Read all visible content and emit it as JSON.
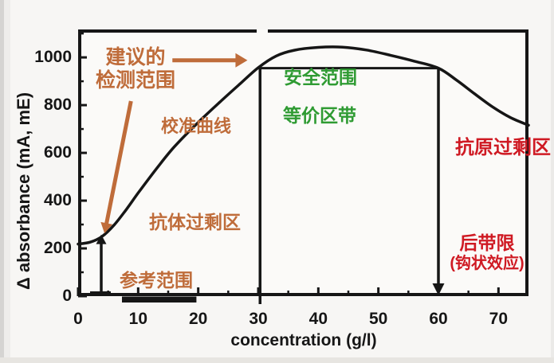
{
  "colors": {
    "orange": "#bf6c3a",
    "green": "#2f9b33",
    "red": "#cf1a23",
    "black": "#161616",
    "plot_bg": "#fbfaf8",
    "page_bg": "#f7f6f4"
  },
  "chart_data": {
    "type": "line",
    "title": "",
    "xlabel": "concentration (g/l)",
    "ylabel": "Δ absorbance (mA, mE)",
    "xlim": [
      0,
      75
    ],
    "ylim": [
      0,
      1117
    ],
    "grid": false,
    "x_ticks": [
      0,
      10,
      20,
      30,
      40,
      50,
      60,
      70
    ],
    "x_minor_ticks": [
      5,
      15,
      25,
      35,
      45,
      55,
      65
    ],
    "y_ticks": [
      0,
      200,
      400,
      600,
      800,
      1000
    ],
    "y_minor_ticks": [
      100,
      300,
      500,
      700,
      900,
      1100
    ],
    "series": [
      {
        "name": "校准曲线",
        "x": [
          0,
          2,
          4,
          6,
          8,
          10,
          13,
          16,
          20,
          24,
          27,
          30,
          33,
          36,
          40,
          44,
          48,
          52,
          56,
          60,
          63,
          66,
          69,
          72,
          75
        ],
        "y": [
          218,
          226,
          250,
          298,
          362,
          432,
          532,
          625,
          728,
          822,
          890,
          957,
          1006,
          1030,
          1042,
          1043,
          1031,
          1009,
          984,
          955,
          905,
          848,
          793,
          748,
          716
        ]
      }
    ],
    "annotations": {
      "safe_zone": {
        "x_start": 30.3,
        "x_end": 60,
        "y_level": 955
      },
      "sample_marker_arrow": {
        "x": 3.85,
        "y_from": 0,
        "y_to": 258
      },
      "reference_range_bar": {
        "x_start": 7.3,
        "x_end": 19.7
      },
      "recommended_range_arrow": {
        "x_from": 15.7,
        "x_to": 28.2,
        "y": 988
      },
      "recommended_range_pointer": {
        "x_from": 8.8,
        "y_from": 817,
        "x_to": 4.4,
        "y_to": 263
      }
    }
  },
  "labels": {
    "recommended_line1": "建议的",
    "recommended_line2": "检测范围",
    "calibration_curve": "校准曲线",
    "safe_range": "安全范围",
    "equivalence_zone": "等价区带",
    "antibody_excess_zone": "抗体过剩区",
    "reference_range": "参考范围",
    "antigen_excess_zone": "抗原过剩区",
    "hook_line1": "后带限",
    "hook_line2": "(钩状效应)"
  }
}
